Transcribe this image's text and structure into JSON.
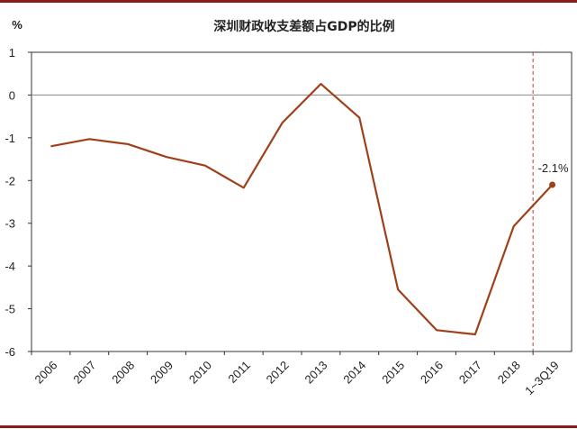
{
  "chart_data": {
    "type": "line",
    "title": "深圳财政收支差额占GDP的比例",
    "ylabel": "%",
    "ylim": [
      -6,
      1
    ],
    "yticks": [
      "1",
      "0",
      "-1",
      "-2",
      "-3",
      "-4",
      "-5",
      "-6"
    ],
    "categories": [
      "2006",
      "2007",
      "2008",
      "2009",
      "2010",
      "2011",
      "2012",
      "2013",
      "2014",
      "2015",
      "2016",
      "2017",
      "2018",
      "1~3Q19"
    ],
    "series": [
      {
        "values": [
          -1.2,
          -1.03,
          -1.15,
          -1.45,
          -1.65,
          -2.17,
          -0.65,
          0.26,
          -0.53,
          -4.55,
          -5.5,
          -5.6,
          -3.07,
          -2.1
        ]
      }
    ],
    "annotation": {
      "text": "-2.1%",
      "index": 13
    },
    "reference_line_after_index": 12,
    "grid": false,
    "colors": {
      "line": "#a0401a",
      "frame": "#8b1a1a",
      "reference": "#c0392b",
      "zero": "#888888"
    }
  }
}
